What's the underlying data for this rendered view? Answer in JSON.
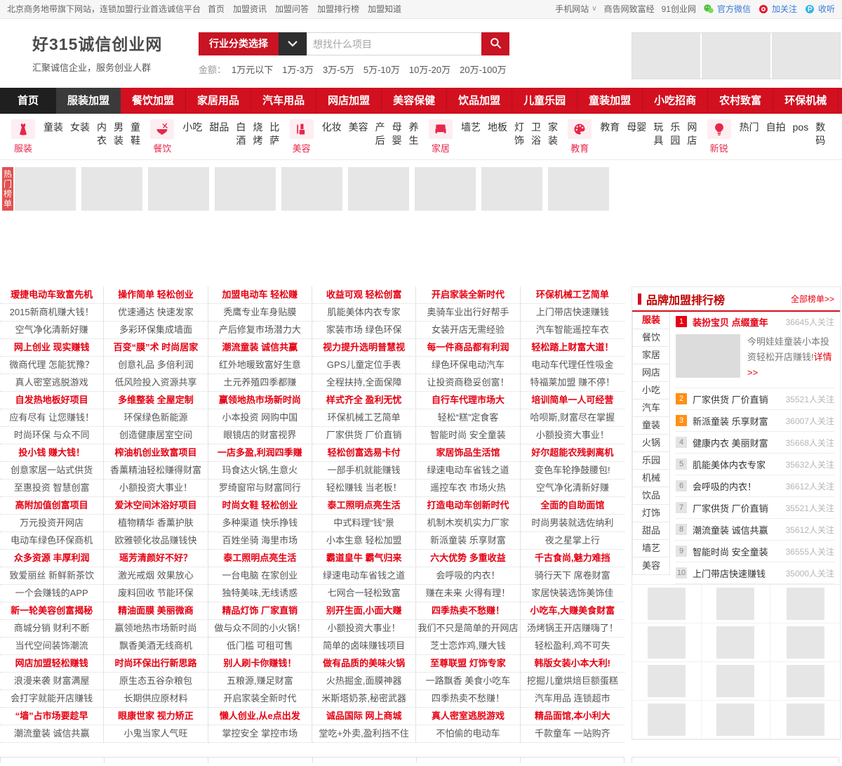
{
  "topbar": {
    "left_text": "北京商务地带旗下网站，连锁加盟行业首选诚信平台",
    "left_links": [
      "首页",
      "加盟资讯",
      "加盟问答",
      "加盟排行榜",
      "加盟知道"
    ],
    "right_links": [
      "手机网站",
      "商告网致富经",
      "91创业网"
    ],
    "social": [
      {
        "icon": "wechat-icon",
        "label": "官方微信"
      },
      {
        "icon": "weibo-icon",
        "label": "加关注"
      },
      {
        "icon": "tencent-weibo-icon",
        "label": "收听"
      }
    ]
  },
  "header": {
    "logo_title": "好315诚信创业网",
    "logo_subtitle": "汇聚诚信企业，服务创业人群",
    "category_button": "行业分类选择",
    "search_placeholder": "想找什么项目",
    "amount_label": "金额：",
    "amount_links": [
      "1万元以下",
      "1万-3万",
      "3万-5万",
      "5万-10万",
      "10万-20万",
      "20万-100万"
    ],
    "ad_placeholder_count": 3
  },
  "nav": {
    "items": [
      "首页",
      "服装加盟",
      "餐饮加盟",
      "家居用品",
      "汽车用品",
      "网店加盟",
      "美容保健",
      "饮品加盟",
      "儿童乐园",
      "童装加盟",
      "小吃招商",
      "农村致富",
      "环保机械"
    ]
  },
  "categories": [
    {
      "label": "服装",
      "icon": "clothing-icon",
      "row_links": [
        "童装",
        "女装"
      ],
      "col_links": [
        "内衣",
        "男装",
        "童鞋"
      ]
    },
    {
      "label": "餐饮",
      "icon": "food-icon",
      "row_links": [
        "小吃",
        "甜品"
      ],
      "col_links": [
        "白酒",
        "烧烤",
        "比萨"
      ]
    },
    {
      "label": "美容",
      "icon": "beauty-icon",
      "row_links": [
        "化妆",
        "美容"
      ],
      "col_links": [
        "产后",
        "母婴",
        "养生"
      ]
    },
    {
      "label": "家居",
      "icon": "home-icon",
      "row_links": [
        "墙艺",
        "地板"
      ],
      "col_links": [
        "灯饰",
        "卫浴",
        "家装"
      ]
    },
    {
      "label": "教育",
      "icon": "education-icon",
      "row_links": [
        "教育",
        "母婴"
      ],
      "col_links": [
        "玩具",
        "乐园",
        "网店"
      ]
    },
    {
      "label": "新锐",
      "icon": "innovation-icon",
      "row_links": [
        "热门",
        "自拍",
        "pos"
      ],
      "col_links": [
        "数码"
      ]
    }
  ],
  "hot_banner": {
    "tab": "热门榜单",
    "placeholder_count": 9
  },
  "links_columns": [
    [
      "瑷捷电动车致富先机",
      "2015新商机赚大钱！",
      "空气净化清新好赚",
      "网上创业 现实赚钱",
      "微商代理 怎能犹豫？",
      "真人密室逃脱游戏",
      "自发热地板好项目",
      "应有尽有 让您赚钱！",
      "时尚环保 与众不同",
      "投小钱 赚大钱！",
      "创意家居一站式供货",
      "至惠投资 智慧创富",
      "高附加值创富项目",
      "万元投资开网店",
      "电动车绿色环保商机",
      "众多资源 丰厚利润",
      "致爱丽丝 新鲜新茶饮",
      "一个会赚钱的APP",
      "新一轮美容创富揭秘",
      "商城分销 财利不断",
      "当代空间装饰潮流",
      "网店加盟轻松赚钱",
      "浪漫来袭 财富满屋",
      "会打字就能开店赚钱",
      "“墙”占市场要趁早",
      "潮流童装 诚信共赢"
    ],
    [
      "操作简单 轻松创业",
      "优速通达 快速发家",
      "多彩环保集成墙面",
      "百变“膜”术 时尚居家",
      "创意礼品 多倍利润",
      "低风险投入资源共享",
      "多维整装 全屋定制",
      "环保绿色新能源",
      "创造健康居室空间",
      "榨油机创业致富项目",
      "香薰精油轻松赚得财富",
      "小额投资大事业！",
      "爱沐空间沐浴好项目",
      "植物精华 香薰护肤",
      "欧雅顿化妆品赚钱快",
      "瑶芳清颜好不好？",
      "激光戒烟 效果放心",
      "废料回收 节能环保",
      "精油面膜 美丽微商",
      "赢领地热市场新时尚",
      "飘香美酒无线商机",
      "时尚环保出行新思路",
      "原生态五谷杂粮包",
      "长期供应原材料",
      "眼康世家 视力矫正",
      "小鬼当家人气旺"
    ],
    [
      "加盟电动车 轻松赚",
      "秃鹰专业车身贴膜",
      "产后修复市场潜力大",
      "潮流童装 诚信共赢",
      "红外地暖致富好生意",
      "土元养殖四季都赚",
      "赢领地热市场新时尚",
      "小本投资 网购中国",
      "眼镜店的财富视界",
      "一店多盈,利润四季赚",
      "玛食达火锅,生意火",
      "罗绮窗帘与财富同行",
      "时尚女鞋 轻松创业",
      "多种渠道 快乐挣钱",
      "百姓坐骑 海里市场",
      "泰工照明点亮生活",
      "一台电脑 在家创业",
      "独特美味,无线诱惑",
      "精品灯饰 厂家直销",
      "做与众不同的小火锅！",
      "低门槛 可租可售",
      "别人刷卡你赚钱！",
      "五粮源,赚足财富",
      "开启家装全新时代",
      "懒人创业,从e点出发",
      "掌控安全 掌控市场"
    ],
    [
      "收益可观 轻松创富",
      "肌能美体内衣专家",
      "家装市场 绿色环保",
      "视力提升选明普慧视",
      "GPS儿童定位手表",
      "全程扶持,全面保障",
      "样式齐全 盈利无忧",
      "环保机械工艺简单",
      "厂家供货 厂价直销",
      "轻松创富选易卡付",
      "一部手机就能赚钱",
      "轻松赚钱 当老板！",
      "泰工照明点亮生活",
      "中式料理“钱”景",
      "小本生意 轻松加盟",
      "霸道皇牛 霸气归来",
      "绿速电动车省钱之道",
      "七网合一轻松致富",
      "别开生面,小面大赚",
      "小额投资大事业！",
      "简单的卤味赚钱项目",
      "做有品质的美味火锅",
      "火热掘金,面膜神器",
      "米斯塔奶茶,秘密武器",
      "诚品国际 网上商城",
      "堂吃+外卖,盈利挡不住"
    ],
    [
      "开启家装全新时代",
      "奥骑车业出行好帮手",
      "女装开店无需经验",
      "每一件商品都有利润",
      "绿色环保电动汽车",
      "让投资商稳妥创富！",
      "自行车代理市场大",
      "轻松“糕”定食客",
      "智能时尚 安全童装",
      "家居饰品生活馆",
      "绿速电动车省钱之道",
      "遥控车衣 市场火热",
      "打造电动车创新时代",
      "机制木炭机实力厂家",
      "新派童装 乐享财富",
      "六大优势 多重收益",
      "会呼吸的内衣！",
      "赚在未来 火得有理！",
      "四季热卖不愁赚！",
      "我们不只是简单的开网店",
      "芝士恋炸鸡,赚大钱",
      "至尊联盟 灯饰专家",
      "一路飘香 美食小吃车",
      "四季热卖不愁赚！",
      "真人密室逃脱游戏",
      "不怕偷的电动车"
    ],
    [
      "环保机械工艺简单",
      "上门带店快速赚钱",
      "汽车智能遥控车衣",
      "轻松踏上财富大道！",
      "电动车代理任性吸金",
      "特福莱加盟 赚不停！",
      "培训简单一人可经营",
      "哈呗斯,财富尽在掌握",
      "小额投资大事业！",
      "好尔超能农残剥离机",
      "变色车轮挣鼓腰包!",
      "空气净化清新好赚",
      "全面的自助面馆",
      "时尚男装就选佐纳利",
      "夜之星掌上行",
      "千古食尚,魅力难挡",
      "骑行天下 席卷财富",
      "家居快装选饰美饰佳",
      "小吃车,大赚美食财富",
      "汤烤锅王开店赚嗨了！",
      "轻松盈利,鸡不可失",
      "韩版女装小本大利!",
      "挖掘儿童烘焙巨额蛋糕",
      "汽车用品 连锁超市",
      "精品面馆,本小利大",
      "千款童车 一站购齐"
    ]
  ],
  "sidebar": {
    "title": "品牌加盟排行榜",
    "more": "全部榜单>>",
    "tabs": [
      "服装",
      "餐饮",
      "家居",
      "网店",
      "小吃",
      "汽车",
      "童装",
      "火锅",
      "乐园",
      "机械",
      "饮品",
      "灯饰",
      "甜品",
      "墙艺",
      "美容"
    ],
    "featured_desc": "今明娃娃童装小本投资轻松开店赚钱!",
    "featured_more": "详情>>",
    "ranking": [
      {
        "rank": "1",
        "label": "装扮宝贝 点缀童年",
        "count": "36645人关注"
      },
      {
        "rank": "2",
        "label": "厂家供货 厂价直销",
        "count": "35521人关注"
      },
      {
        "rank": "3",
        "label": "新派童装 乐享财富",
        "count": "36007人关注"
      },
      {
        "rank": "4",
        "label": "健康内衣 美丽财富",
        "count": "35668人关注"
      },
      {
        "rank": "5",
        "label": "肌能美体内衣专家",
        "count": "35632人关注"
      },
      {
        "rank": "6",
        "label": "会呼吸的内衣！",
        "count": "36612人关注"
      },
      {
        "rank": "7",
        "label": "厂家供货 厂价直销",
        "count": "35521人关注"
      },
      {
        "rank": "8",
        "label": "潮流童装 诚信共赢",
        "count": "35612人关注"
      },
      {
        "rank": "9",
        "label": "智能时尚 安全童装",
        "count": "36555人关注"
      },
      {
        "rank": "10",
        "label": "上门带店快速赚钱",
        "count": "35000人关注"
      }
    ],
    "brand_placeholder_count": 12
  },
  "colors": {
    "brand_red": "#d2101f",
    "link_red": "#e60012",
    "icon_pink": "#e8264a",
    "badge_orange": "#ff9012",
    "hot_tab_red": "#e25151",
    "wechat_green": "#4fbf3a",
    "weibo_red": "#e6162d",
    "tencent_blue": "#34b3e4"
  }
}
